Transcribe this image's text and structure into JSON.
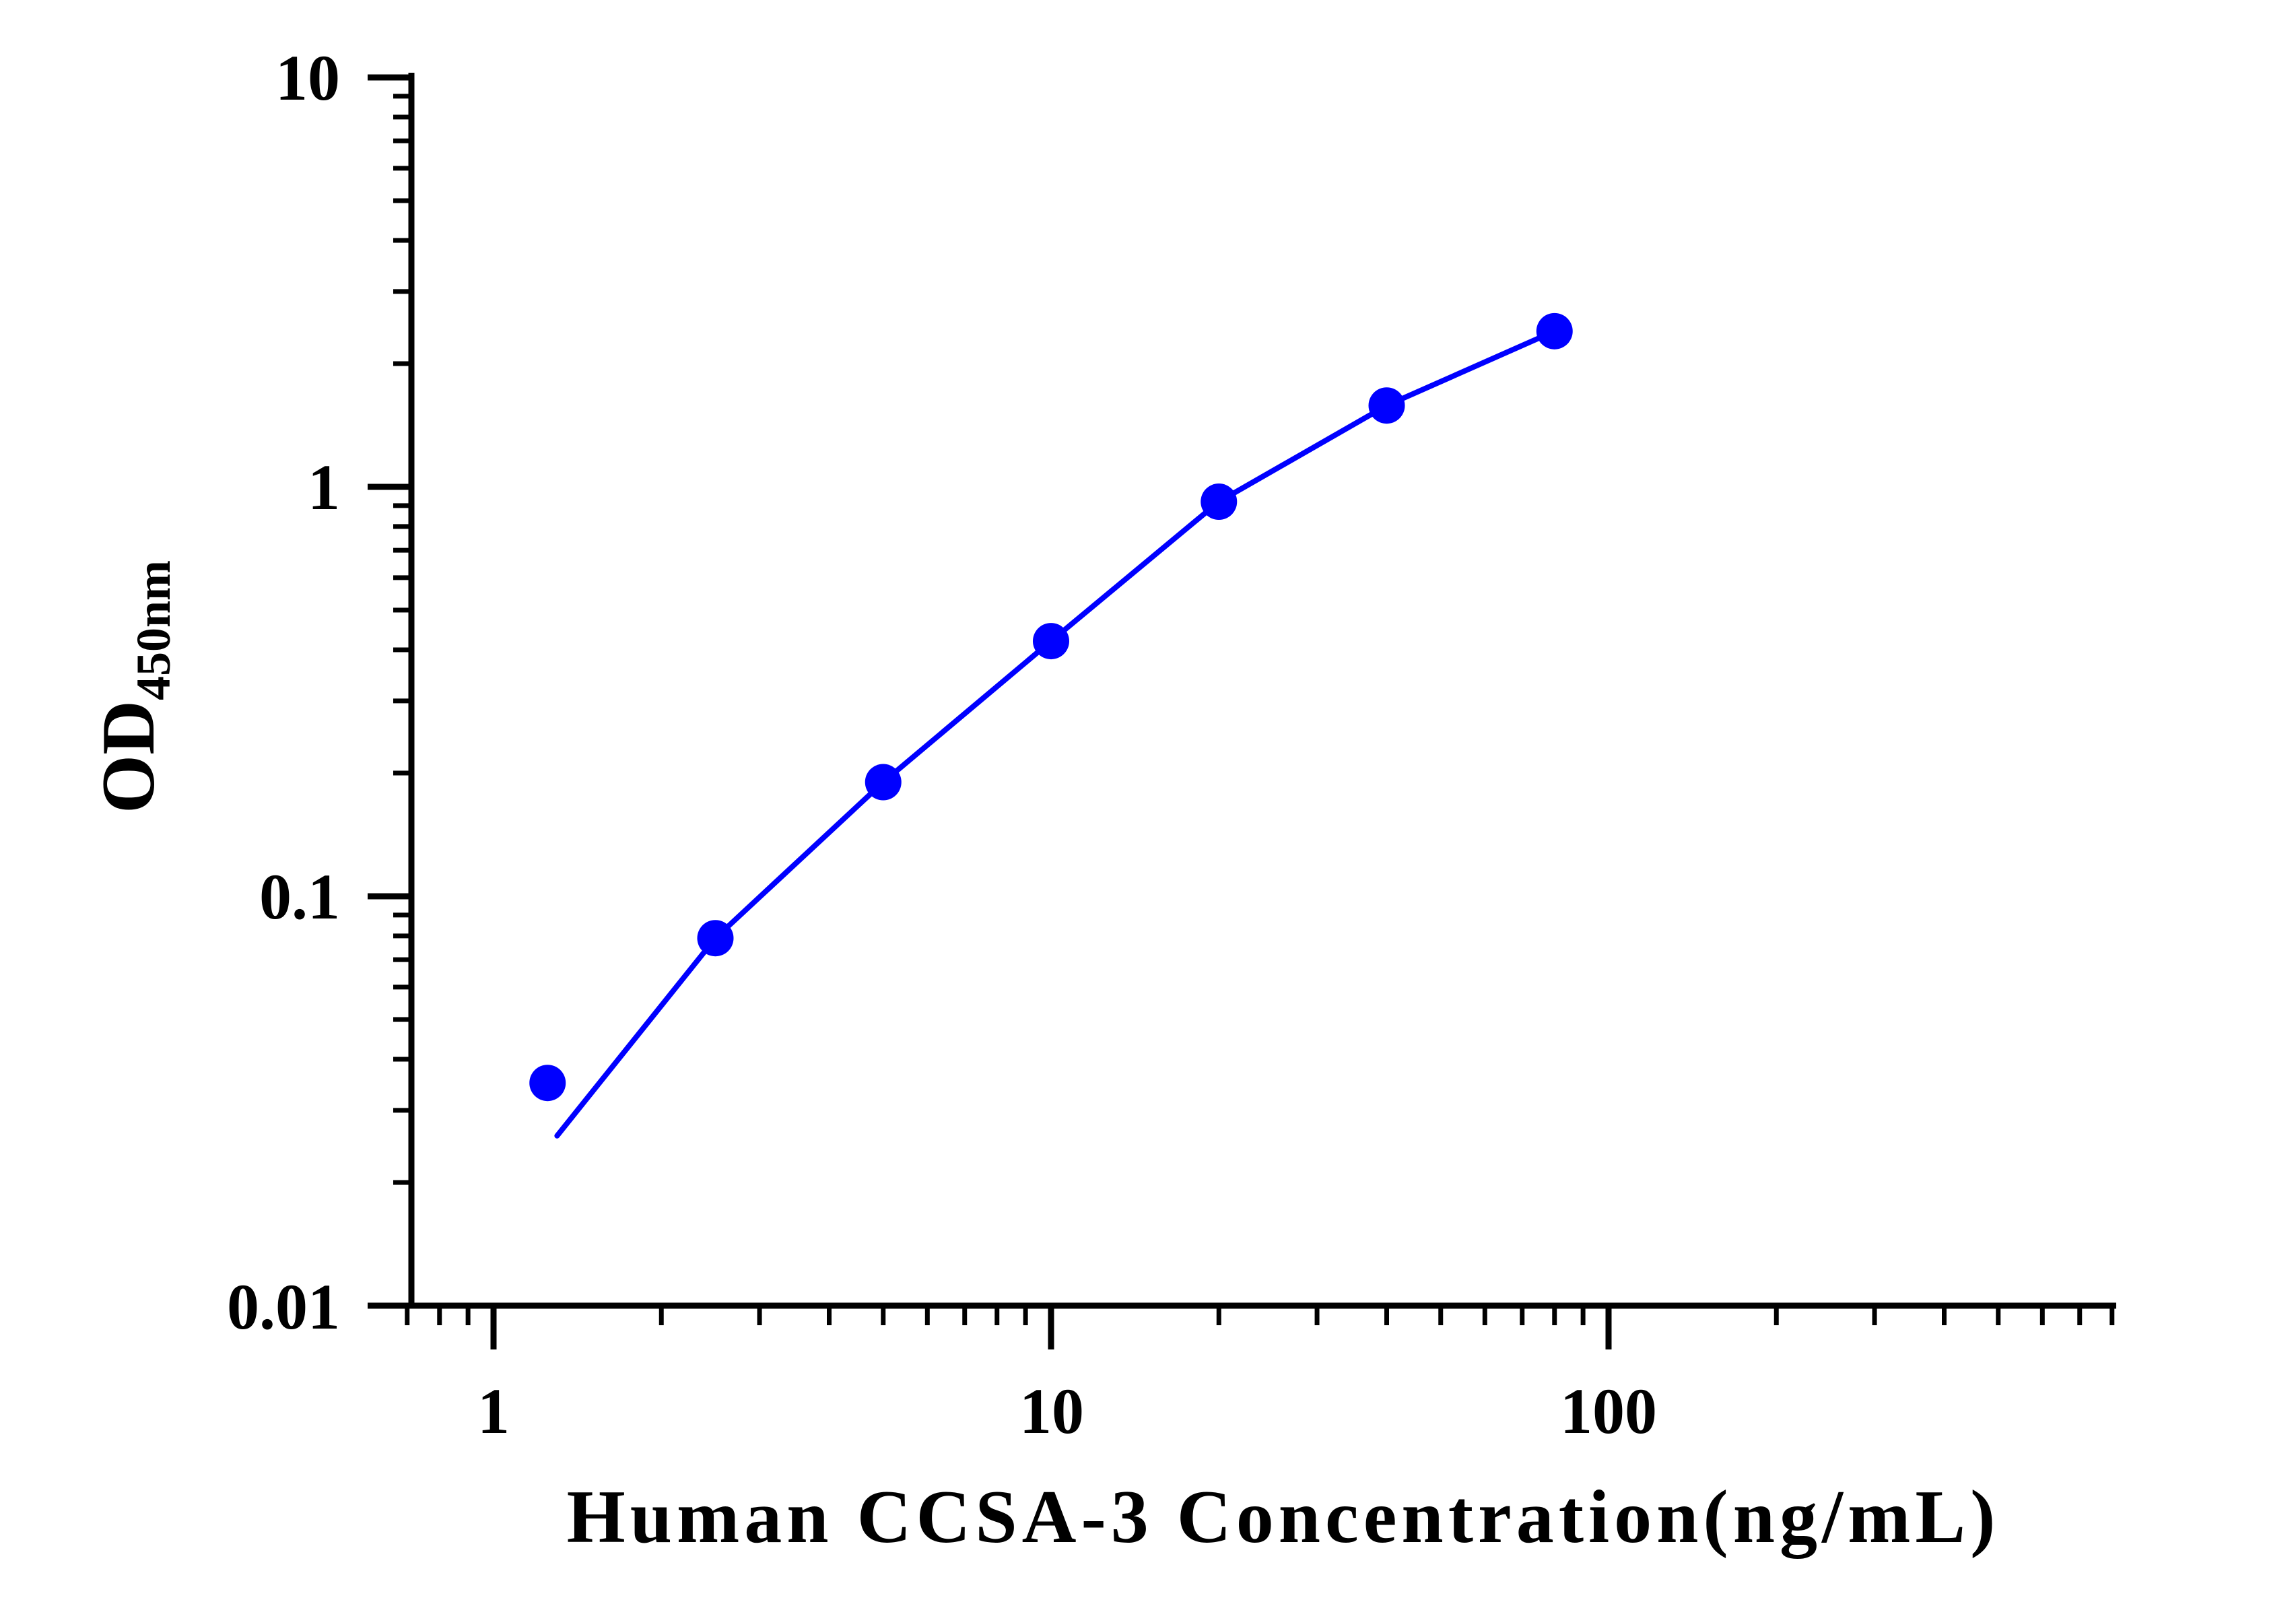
{
  "chart_data": {
    "type": "scatter",
    "title": "",
    "xlabel": "Human CCSA-3 Concentration(ng/mL)",
    "ylabel": "OD",
    "ylabel_subscript": "450nm",
    "xscale": "log",
    "yscale": "log",
    "xlim": [
      0.7,
      800
    ],
    "ylim": [
      0.01,
      10
    ],
    "x_ticks": [
      "1",
      "10",
      "100"
    ],
    "y_ticks": [
      "0.01",
      "0.1",
      "1",
      "10"
    ],
    "grid": false,
    "legend": "none",
    "color": "#0000ff",
    "series": [
      {
        "x": [
          1.25,
          2.5,
          5,
          10,
          20,
          40,
          80
        ],
        "y": [
          0.035,
          0.079,
          0.19,
          0.42,
          0.92,
          1.58,
          2.4
        ]
      }
    ],
    "fit_curve": {
      "x": [
        1.3,
        2.5,
        5,
        10,
        20,
        40,
        80
      ],
      "y": [
        0.026,
        0.079,
        0.19,
        0.42,
        0.92,
        1.58,
        2.4
      ]
    }
  }
}
